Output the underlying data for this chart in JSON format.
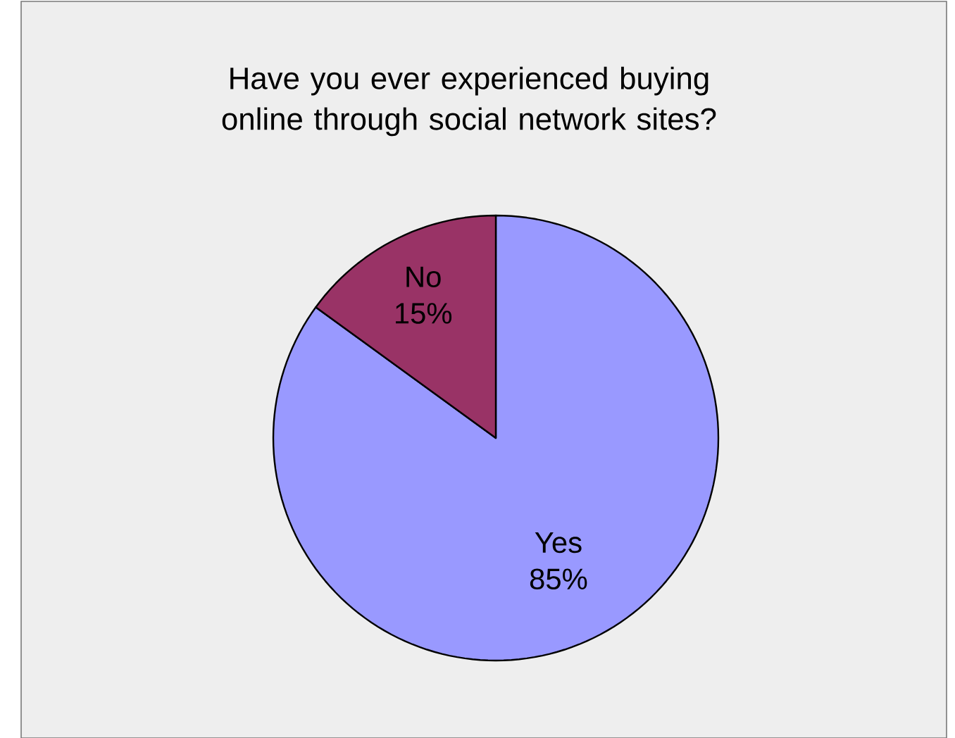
{
  "chart_data": {
    "type": "pie",
    "title": "Have you ever experienced buying online through social network sites?",
    "categories": [
      "Yes",
      "No"
    ],
    "values": [
      85,
      15
    ],
    "value_labels": [
      "85%",
      "15%"
    ],
    "colors": [
      "#9999ff",
      "#993366"
    ]
  }
}
